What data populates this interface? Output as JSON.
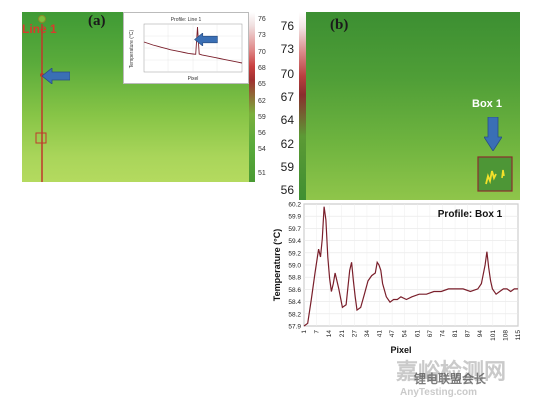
{
  "panel_a": {
    "label": "(a)",
    "line_label": "Line 1",
    "colorbar_ticks": [
      "76",
      "73",
      "70",
      "68",
      "65",
      "62",
      "59",
      "56",
      "54",
      "51"
    ],
    "inset": {
      "title": "Profile: Line 1",
      "ylabel": "Temperature (°C)",
      "xlabel": "Pixel"
    }
  },
  "panel_b": {
    "label": "(b)",
    "colorbar_ticks": [
      "76",
      "73",
      "70",
      "67",
      "64",
      "62",
      "59",
      "56"
    ],
    "box_label": "Box 1",
    "profile_title": "Profile: Box 1"
  },
  "colors": {
    "profile_line": "#7a1f2b",
    "arrow": "#3a6fb5",
    "line_marker": "#c0392b"
  },
  "icons": [
    "arrow-left-icon",
    "arrow-down-icon"
  ],
  "watermark": {
    "line1": "嘉峪检测网",
    "line2": "锂电联盟会长",
    "line3": "AnyTesting.com"
  },
  "chart_data": [
    {
      "type": "line",
      "title": "Profile: Box 1",
      "xlabel": "Pixel",
      "ylabel": "Temperature (°C)",
      "xlim": [
        1,
        118
      ],
      "ylim": [
        57.9,
        60.2
      ],
      "xticks": [
        "1",
        "7",
        "14",
        "21",
        "27",
        "34",
        "41",
        "47",
        "54",
        "61",
        "67",
        "74",
        "81",
        "87",
        "94",
        "101",
        "108",
        "115"
      ],
      "yticks": [
        "57.9",
        "58.2",
        "58.4",
        "58.6",
        "58.8",
        "59.0",
        "59.2",
        "59.4",
        "59.7",
        "59.9",
        "60.2"
      ],
      "grid": true,
      "x": [
        1,
        3,
        5,
        7,
        9,
        10,
        11,
        12,
        13,
        14,
        15,
        16,
        17,
        18,
        20,
        22,
        24,
        26,
        27,
        28,
        29,
        30,
        32,
        34,
        36,
        38,
        40,
        41,
        42,
        43,
        44,
        46,
        48,
        50,
        52,
        54,
        57,
        60,
        64,
        68,
        72,
        76,
        80,
        84,
        88,
        92,
        96,
        98,
        100,
        101,
        102,
        103,
        104,
        106,
        108,
        110,
        112,
        114,
        116,
        118
      ],
      "y": [
        57.9,
        57.95,
        58.4,
        58.9,
        59.35,
        59.2,
        59.55,
        60.15,
        59.9,
        59.2,
        58.8,
        58.55,
        58.7,
        58.9,
        58.6,
        58.25,
        58.3,
        58.95,
        59.1,
        58.75,
        58.45,
        58.2,
        58.25,
        58.5,
        58.75,
        58.85,
        58.9,
        59.1,
        59.05,
        58.95,
        58.7,
        58.45,
        58.35,
        58.4,
        58.4,
        58.45,
        58.4,
        58.45,
        58.5,
        58.5,
        58.55,
        58.55,
        58.6,
        58.6,
        58.6,
        58.55,
        58.6,
        58.7,
        59.05,
        59.3,
        59.0,
        58.75,
        58.6,
        58.5,
        58.55,
        58.6,
        58.6,
        58.55,
        58.6,
        58.6
      ]
    },
    {
      "type": "line",
      "title": "Profile: Line 1",
      "xlabel": "Pixel",
      "ylabel": "Temperature (°C)",
      "x": [
        0,
        5,
        10,
        15,
        20,
        25,
        30,
        35,
        40,
        45,
        50,
        55,
        58,
        60,
        62,
        65,
        70,
        75,
        80,
        85,
        90,
        95,
        100,
        105,
        110
      ],
      "y": [
        66,
        65.5,
        65,
        64.6,
        64.2,
        63.8,
        63.4,
        63.1,
        62.8,
        62.5,
        62.2,
        62,
        61.9,
        71,
        62,
        61.7,
        61.4,
        61.1,
        60.8,
        60.5,
        60.2,
        59.9,
        59.6,
        59.3,
        59
      ]
    }
  ]
}
